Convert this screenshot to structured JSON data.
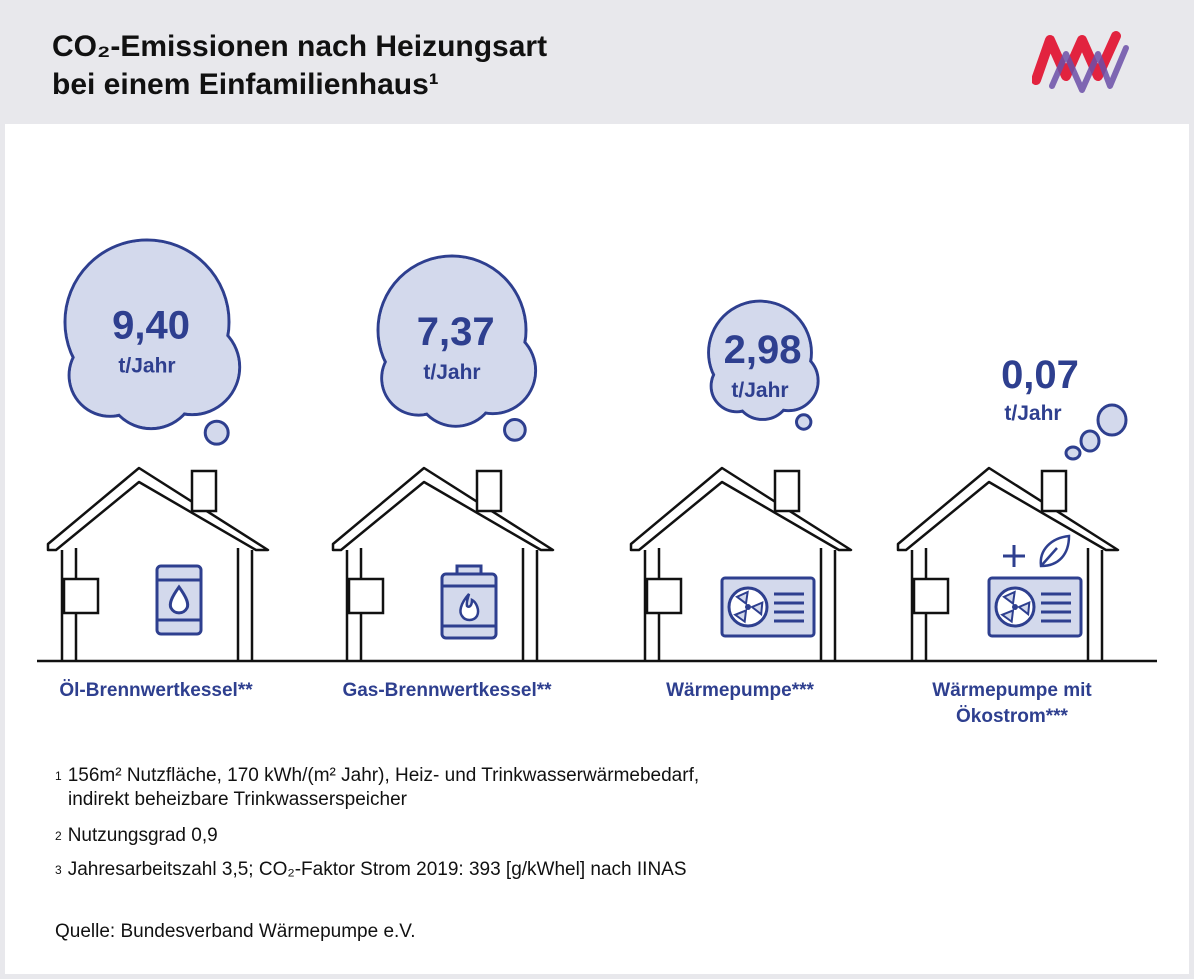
{
  "header": {
    "title_line1": "CO₂-Emissionen nach Heizungsart",
    "title_line2": "bei einem Einfamilienhaus¹"
  },
  "colors": {
    "accent": "#2e3f8f",
    "cloud_fill": "#d3d9ec",
    "header_bg": "#e8e8ec",
    "logo_red": "#e2233f",
    "logo_purple": "#6b4fa8"
  },
  "chart_data": {
    "type": "bar",
    "categories": [
      "Öl-Brennwertkessel**",
      "Gas-Brennwertkessel**",
      "Wärmepumpe***",
      "Wärmepumpe mit Ökostrom***"
    ],
    "categories_lines": [
      [
        "Öl-Brennwertkessel**"
      ],
      [
        "Gas-Brennwertkessel**"
      ],
      [
        "Wärmepumpe***"
      ],
      [
        "Wärmepumpe mit",
        "Ökostrom***"
      ]
    ],
    "values": [
      9.4,
      7.37,
      2.98,
      0.07
    ],
    "value_labels": [
      "9,40",
      "7,37",
      "2,98",
      "0,07"
    ],
    "unit": "t/Jahr",
    "icons": [
      "oil-barrel-icon",
      "gas-boiler-icon",
      "heat-pump-icon",
      "heat-pump-eco-icon"
    ]
  },
  "footnotes": [
    {
      "mark": "1",
      "lines": [
        "156m² Nutzfläche, 170 kWh/(m² Jahr), Heiz- und Trinkwasserwärmebedarf,",
        "indirekt beheizbare Trinkwasserspeicher"
      ]
    },
    {
      "mark": "2",
      "lines": [
        "Nutzungsgrad 0,9"
      ]
    },
    {
      "mark": "3",
      "lines": [
        "Jahresarbeitszahl 3,5; CO₂-Faktor Strom 2019: 393 [g/kWhel] nach IINAS"
      ]
    }
  ],
  "source": "Quelle: Bundesverband Wärmepumpe e.V."
}
